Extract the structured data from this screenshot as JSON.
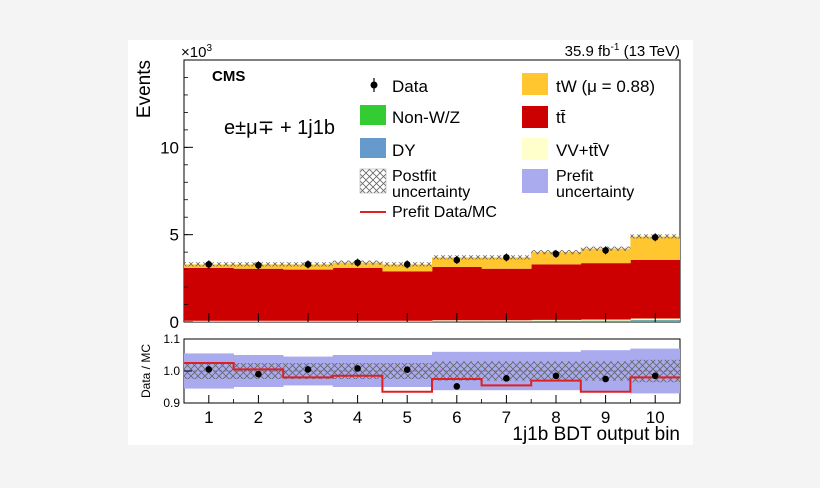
{
  "header": {
    "exponent": "×10",
    "exponent_power": "3",
    "lumi_prefix": "35.9 fb",
    "lumi_power": "-1",
    "lumi_suffix": " (13 TeV)",
    "cms": "CMS",
    "channel": "e±μ∓ + 1j1b"
  },
  "colors": {
    "tW": "#ffc62f",
    "ttbar": "#cc0000",
    "nonWZ": "#33cc33",
    "DY": "#6699cc",
    "VV": "#ffffcc",
    "prefit_band": "#aaaaee",
    "prefit_line": "#e02020",
    "data": "#000000"
  },
  "legend": [
    {
      "key": "data",
      "label": "Data"
    },
    {
      "key": "tW",
      "label": "tW (μ = 0.88)"
    },
    {
      "key": "nonWZ",
      "label": "Non-W/Z"
    },
    {
      "key": "ttbar",
      "label": "tt̄"
    },
    {
      "key": "DY",
      "label": "DY"
    },
    {
      "key": "VV",
      "label": "VV+tt̄V"
    },
    {
      "key": "postfit",
      "label": "Postfit",
      "label2": "uncertainty"
    },
    {
      "key": "prefit",
      "label": "Prefit",
      "label2": "uncertainty"
    },
    {
      "key": "ratio_line",
      "label": "Prefit Data/MC"
    }
  ],
  "chart_data": [
    {
      "type": "bar",
      "stacked": true,
      "ylabel": "Events",
      "ylim": [
        0,
        15
      ],
      "y_ticks": [
        "0",
        "5",
        "10"
      ],
      "categories": [
        "1",
        "2",
        "3",
        "4",
        "5",
        "6",
        "7",
        "8",
        "9",
        "10"
      ],
      "series": [
        {
          "name": "DY",
          "values": [
            0.03,
            0.03,
            0.03,
            0.03,
            0.03,
            0.05,
            0.05,
            0.06,
            0.07,
            0.1
          ]
        },
        {
          "name": "Non-W/Z",
          "values": [
            0.01,
            0.01,
            0.01,
            0.01,
            0.01,
            0.01,
            0.01,
            0.01,
            0.01,
            0.02
          ]
        },
        {
          "name": "VV+tt̄V",
          "values": [
            0.03,
            0.03,
            0.03,
            0.03,
            0.03,
            0.04,
            0.04,
            0.05,
            0.06,
            0.08
          ]
        },
        {
          "name": "tt̄",
          "values": [
            3.03,
            2.98,
            2.93,
            3.03,
            2.83,
            3.05,
            2.95,
            3.18,
            3.23,
            3.35
          ]
        },
        {
          "name": "tW (μ = 0.88)",
          "values": [
            0.2,
            0.25,
            0.3,
            0.3,
            0.4,
            0.55,
            0.65,
            0.7,
            0.83,
            1.35
          ]
        }
      ],
      "data": [
        3.3,
        3.25,
        3.3,
        3.4,
        3.3,
        3.55,
        3.7,
        3.9,
        4.1,
        4.85
      ]
    },
    {
      "type": "bar",
      "ylabel": "Data / MC",
      "xlabel": "1j1b BDT output bin",
      "ylim": [
        0.9,
        1.1
      ],
      "y_ticks": [
        "0.9",
        "1.0",
        "1.1"
      ],
      "categories": [
        "1",
        "2",
        "3",
        "4",
        "5",
        "6",
        "7",
        "8",
        "9",
        "10"
      ],
      "ratio_points": [
        1.005,
        0.99,
        1.005,
        1.008,
        1.004,
        0.952,
        0.977,
        0.985,
        0.975,
        0.985
      ],
      "prefit_line": [
        1.025,
        1.005,
        0.98,
        0.985,
        0.935,
        0.975,
        0.955,
        0.97,
        0.935,
        0.98
      ],
      "prefit_uncertainty": [
        0.055,
        0.05,
        0.045,
        0.05,
        0.05,
        0.06,
        0.06,
        0.06,
        0.065,
        0.07
      ],
      "postfit_uncertainty": [
        0.025,
        0.025,
        0.025,
        0.025,
        0.025,
        0.03,
        0.03,
        0.03,
        0.03,
        0.035
      ]
    }
  ]
}
